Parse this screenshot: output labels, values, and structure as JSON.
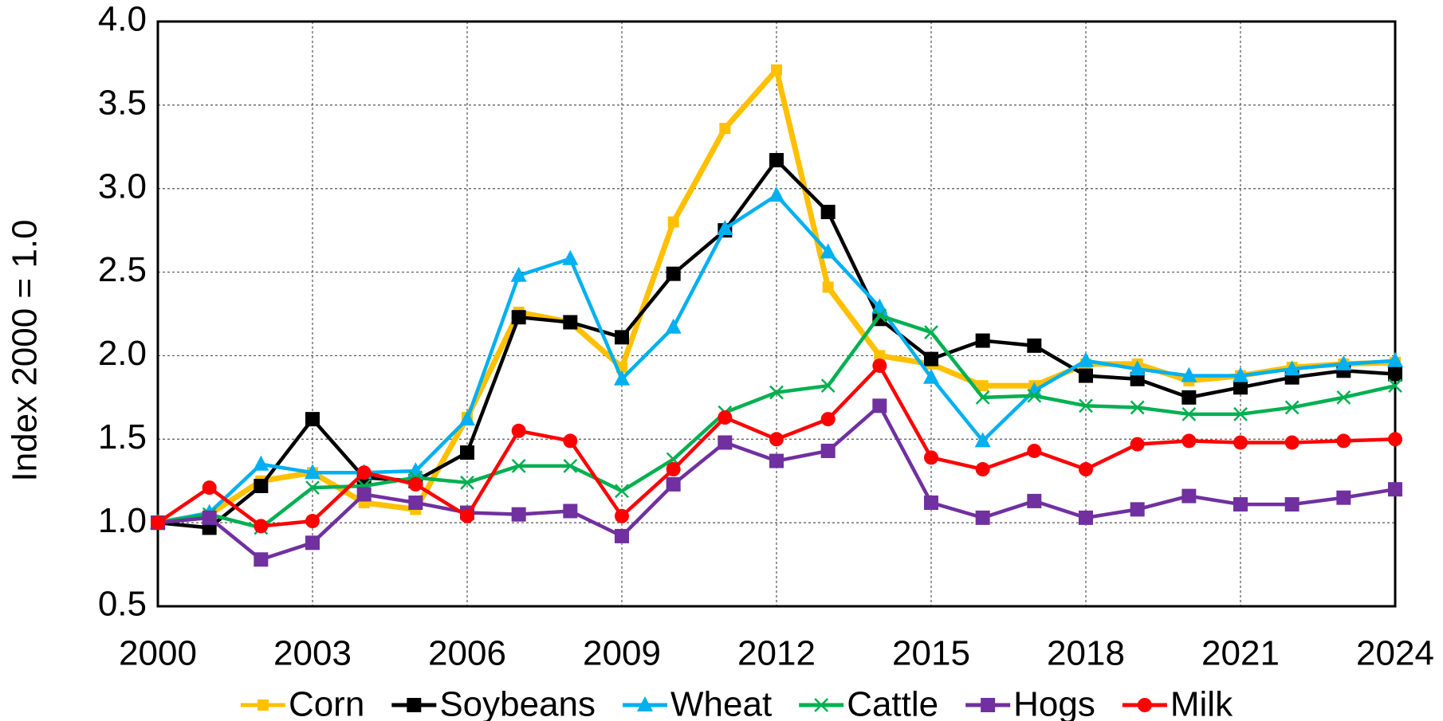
{
  "chart_data": {
    "type": "line",
    "ylabel": "Index 2000 = 1.0",
    "x": [
      2000,
      2001,
      2002,
      2003,
      2004,
      2005,
      2006,
      2007,
      2008,
      2009,
      2010,
      2011,
      2012,
      2013,
      2014,
      2015,
      2016,
      2017,
      2018,
      2019,
      2020,
      2021,
      2022,
      2023,
      2024
    ],
    "xlim": [
      2000,
      2024
    ],
    "xticks": [
      2000,
      2003,
      2006,
      2009,
      2012,
      2015,
      2018,
      2021,
      2024
    ],
    "ylim": [
      0.5,
      4
    ],
    "yticks": [
      0.5,
      {
        "value": 1,
        "label": "1.0"
      },
      1.5,
      {
        "value": 2,
        "label": "2.0"
      },
      2.5,
      {
        "value": 3,
        "label": "3.0"
      },
      3.5,
      {
        "value": 4,
        "label": "4.0"
      }
    ],
    "grid": true,
    "legend": "bottom",
    "series": [
      {
        "name": "Corn",
        "color": "#FFC000",
        "marker": "square-small",
        "values": [
          1.0,
          1.05,
          1.25,
          1.3,
          1.12,
          1.08,
          1.63,
          2.26,
          2.2,
          1.93,
          2.8,
          3.36,
          3.71,
          2.41,
          2.0,
          1.95,
          1.82,
          1.82,
          1.95,
          1.95,
          1.85,
          1.88,
          1.93,
          1.95,
          1.96
        ]
      },
      {
        "name": "Soybeans",
        "color": "#000000",
        "marker": "square",
        "values": [
          1.0,
          0.97,
          1.22,
          1.62,
          1.27,
          1.25,
          1.42,
          2.23,
          2.2,
          2.11,
          2.49,
          2.75,
          3.17,
          2.86,
          2.22,
          1.98,
          2.09,
          2.06,
          1.88,
          1.86,
          1.75,
          1.81,
          1.87,
          1.91,
          1.89
        ]
      },
      {
        "name": "Wheat",
        "color": "#00B0F0",
        "marker": "triangle",
        "values": [
          1.0,
          1.06,
          1.35,
          1.3,
          1.3,
          1.31,
          1.62,
          2.48,
          2.58,
          1.86,
          2.17,
          2.76,
          2.96,
          2.62,
          2.29,
          1.87,
          1.49,
          1.79,
          1.97,
          1.92,
          1.88,
          1.88,
          1.92,
          1.95,
          1.97
        ]
      },
      {
        "name": "Cattle",
        "color": "#00B050",
        "marker": "x",
        "values": [
          1.0,
          1.05,
          0.97,
          1.21,
          1.22,
          1.27,
          1.24,
          1.34,
          1.34,
          1.19,
          1.38,
          1.66,
          1.78,
          1.82,
          2.24,
          2.14,
          1.75,
          1.76,
          1.7,
          1.69,
          1.65,
          1.65,
          1.69,
          1.75,
          1.82
        ]
      },
      {
        "name": "Hogs",
        "color": "#7030A0",
        "marker": "square",
        "values": [
          1.0,
          1.03,
          0.78,
          0.88,
          1.17,
          1.12,
          1.06,
          1.05,
          1.07,
          0.92,
          1.23,
          1.48,
          1.37,
          1.43,
          1.7,
          1.12,
          1.03,
          1.13,
          1.03,
          1.08,
          1.16,
          1.11,
          1.11,
          1.15,
          1.2
        ]
      },
      {
        "name": "Milk",
        "color": "#FF0000",
        "marker": "circle",
        "values": [
          1.0,
          1.21,
          0.98,
          1.01,
          1.3,
          1.23,
          1.04,
          1.55,
          1.49,
          1.04,
          1.32,
          1.63,
          1.5,
          1.62,
          1.94,
          1.39,
          1.32,
          1.43,
          1.32,
          1.47,
          1.49,
          1.48,
          1.48,
          1.49,
          1.5
        ]
      }
    ]
  }
}
